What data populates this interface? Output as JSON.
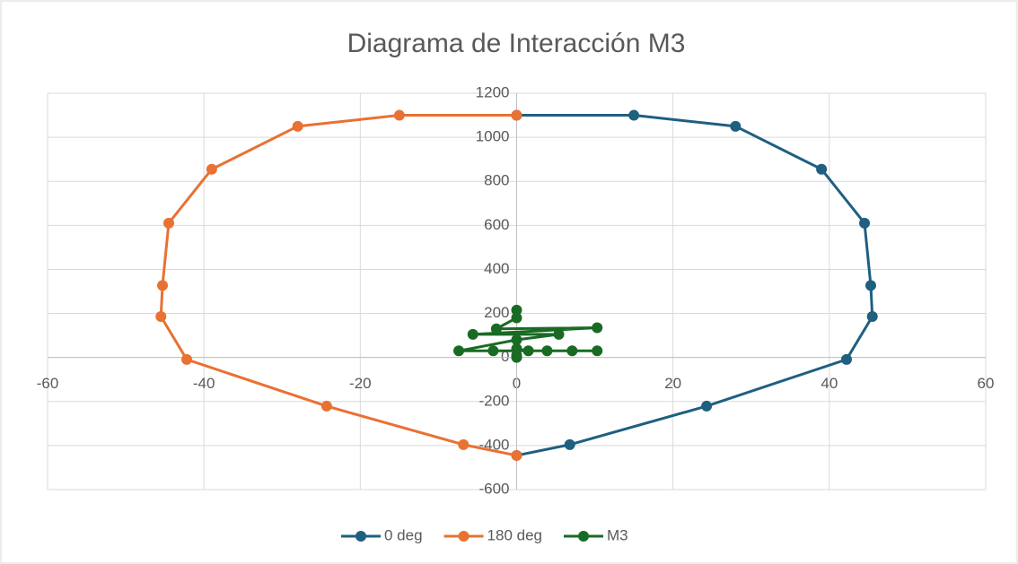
{
  "chart_data": {
    "type": "scatter",
    "title": "Diagrama de Interacción M3",
    "xlim": [
      -60,
      60
    ],
    "xticks": [
      -60,
      -40,
      -20,
      0,
      20,
      40,
      60
    ],
    "ylim": [
      -600,
      1200
    ],
    "yticks": [
      -600,
      -400,
      -200,
      0,
      200,
      400,
      600,
      800,
      1000,
      1200
    ],
    "grid": true,
    "legend": "bottom",
    "series": [
      {
        "name": "0 deg",
        "color": "#1f5f80",
        "x": [
          0,
          15,
          28,
          39,
          44.5,
          45.3,
          45.5,
          42.2,
          24.3,
          6.8,
          0
        ],
        "values": [
          1100,
          1100,
          1050,
          855,
          610,
          327,
          186,
          -9,
          -221,
          -396,
          -445
        ]
      },
      {
        "name": "180 deg",
        "color": "#e97132",
        "x": [
          0,
          -15,
          -28,
          -39,
          -44.5,
          -45.3,
          -45.5,
          -42.2,
          -24.3,
          -6.8,
          0
        ],
        "values": [
          1100,
          1100,
          1050,
          855,
          610,
          327,
          186,
          -9,
          -221,
          -396,
          -445
        ]
      },
      {
        "name": "M3",
        "color": "#196b24",
        "x": [
          0,
          0,
          -2.6,
          10.3,
          -5.6,
          5.4,
          0,
          -7.4,
          10.3,
          7.1,
          -3,
          3.9,
          1.5,
          0,
          0,
          0
        ],
        "values": [
          215,
          180,
          130,
          135,
          105,
          105,
          80,
          30,
          30,
          30,
          30,
          30,
          30,
          40,
          10,
          0
        ]
      }
    ]
  }
}
